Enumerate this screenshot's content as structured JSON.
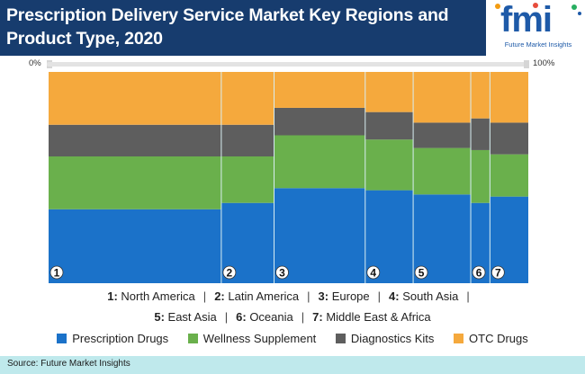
{
  "header": {
    "title": "Prescription Delivery Service Market Key Regions and Product Type, 2020",
    "logo_text": "fmi",
    "logo_caption": "Future Market Insights"
  },
  "axis": {
    "min_label": "0%",
    "max_label": "100%"
  },
  "chart_data": {
    "type": "bar",
    "stacked": true,
    "variable_width": true,
    "title": "Prescription Delivery Service Market Key Regions and Product Type, 2020",
    "categories": [
      "1",
      "2",
      "3",
      "4",
      "5",
      "6",
      "7"
    ],
    "category_widths": [
      36,
      11,
      19,
      10,
      12,
      4,
      8
    ],
    "series": [
      {
        "name": "Prescription Drugs",
        "color": "#1b72c9",
        "values": [
          35,
          38,
          45,
          44,
          42,
          38,
          41
        ]
      },
      {
        "name": "Wellness Supplement",
        "color": "#6ab04c",
        "values": [
          25,
          22,
          25,
          24,
          22,
          25,
          20
        ]
      },
      {
        "name": "Diagnostics Kits",
        "color": "#5e5e5e",
        "values": [
          15,
          15,
          13,
          13,
          12,
          15,
          15
        ]
      },
      {
        "name": "OTC Drugs",
        "color": "#f5a93d",
        "values": [
          25,
          25,
          17,
          19,
          24,
          22,
          24
        ]
      }
    ],
    "ylim": [
      0,
      100
    ],
    "grid": false,
    "legend": "bottom"
  },
  "regions": [
    {
      "num": "1:",
      "name": "North America"
    },
    {
      "num": "2:",
      "name": "Latin America"
    },
    {
      "num": "3:",
      "name": "Europe"
    },
    {
      "num": "4:",
      "name": "South Asia"
    },
    {
      "num": "5:",
      "name": "East Asia"
    },
    {
      "num": "6:",
      "name": "Oceania"
    },
    {
      "num": "7:",
      "name": "Middle East & Africa"
    }
  ],
  "separator": "|",
  "footer": {
    "source": "Source: Future Market Insights"
  }
}
